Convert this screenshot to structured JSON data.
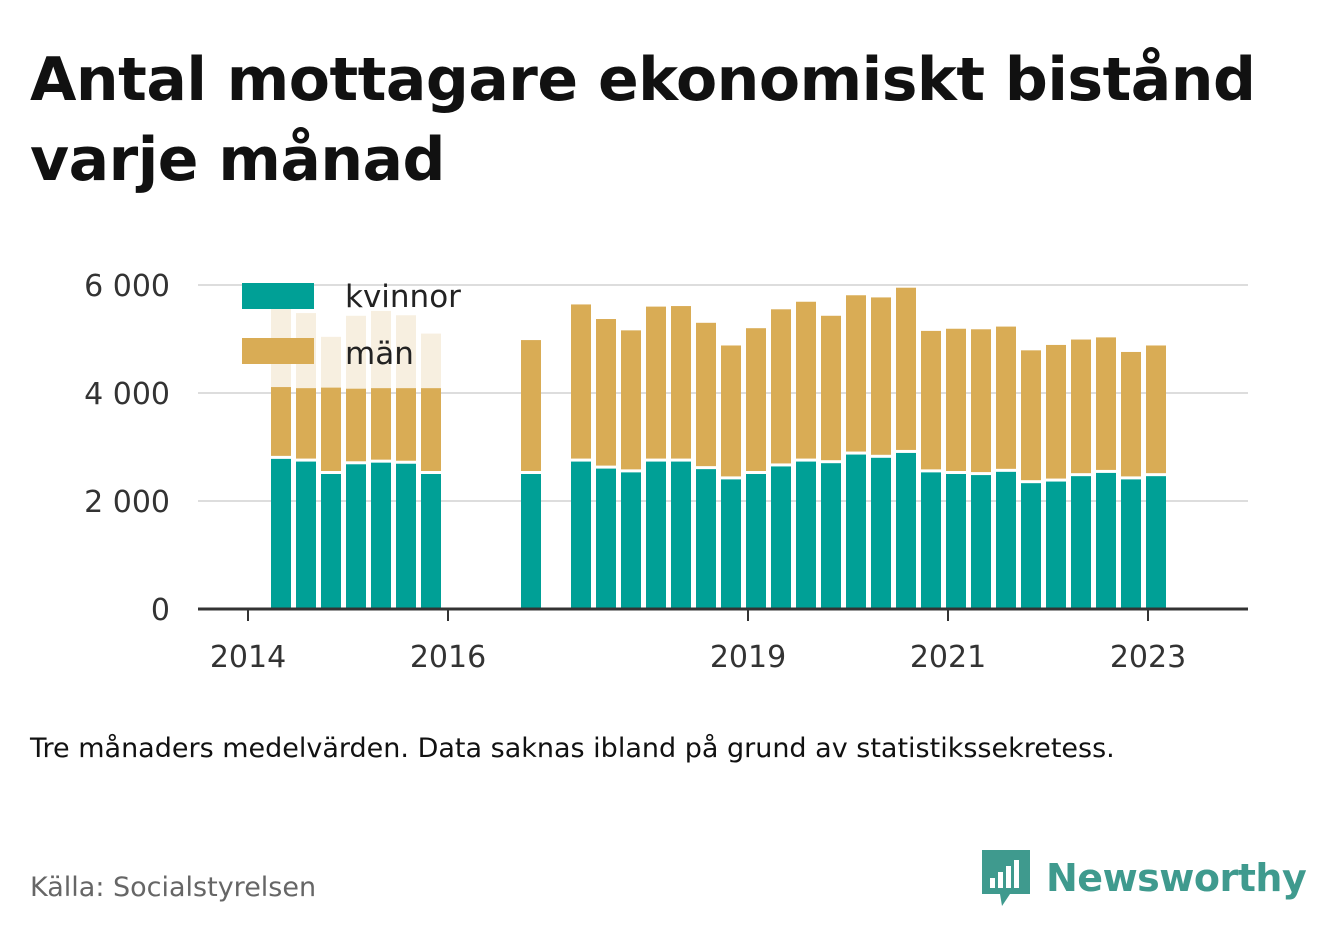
{
  "title": "Antal mottagare ekonomiskt bistånd varje månad",
  "footnote": "Tre månaders medelvärden. Data saknas ibland på grund av statistikssekretess.",
  "source": "Källa: Socialstyrelsen",
  "brand": {
    "name": "Newsworthy",
    "icon": "newsworthy-logo-icon",
    "color": "#3f9a8e"
  },
  "colors": {
    "kvinnor": "#00a096",
    "man": "#d9ac55",
    "man_faded": "#f7efe0",
    "grid": "#dddddd",
    "axis": "#333333"
  },
  "chart_data": {
    "type": "bar",
    "stacked": true,
    "legend": [
      "kvinnor",
      "män"
    ],
    "legend_position": "top-left",
    "grid": true,
    "ylim": [
      0,
      6000
    ],
    "yticks": [
      {
        "value": 0,
        "label": "0"
      },
      {
        "value": 2000,
        "label": "2 000"
      },
      {
        "value": 4000,
        "label": "4 000"
      },
      {
        "value": 6000,
        "label": "6 000"
      }
    ],
    "xticks": [
      {
        "value": 2014,
        "label": "2014"
      },
      {
        "value": 2016,
        "label": "2016"
      },
      {
        "value": 2019,
        "label": "2019"
      },
      {
        "value": 2021,
        "label": "2021"
      },
      {
        "value": 2023,
        "label": "2023"
      }
    ],
    "xlim": [
      2013.5,
      2024.0
    ],
    "x": [
      2014.33,
      2014.58,
      2014.83,
      2015.08,
      2015.33,
      2015.58,
      2015.83,
      2016.83,
      2017.33,
      2017.58,
      2017.83,
      2018.08,
      2018.33,
      2018.58,
      2018.83,
      2019.08,
      2019.33,
      2019.58,
      2019.83,
      2020.08,
      2020.33,
      2020.58,
      2020.83,
      2021.08,
      2021.33,
      2021.58,
      2021.83,
      2022.08,
      2022.33,
      2022.58,
      2022.83,
      2023.08
    ],
    "series": [
      {
        "name": "kvinnor",
        "values": [
          2780,
          2730,
          2500,
          2680,
          2710,
          2690,
          2500,
          2500,
          2730,
          2600,
          2530,
          2730,
          2730,
          2590,
          2400,
          2500,
          2640,
          2730,
          2700,
          2860,
          2800,
          2890,
          2530,
          2500,
          2480,
          2540,
          2330,
          2360,
          2460,
          2520,
          2400,
          2460
        ]
      },
      {
        "name": "män",
        "values": [
          1330,
          1360,
          1600,
          1400,
          1380,
          1400,
          1590,
          2480,
          2910,
          2770,
          2630,
          2870,
          2880,
          2710,
          2480,
          2700,
          2910,
          2960,
          2730,
          2950,
          2970,
          3060,
          2620,
          2690,
          2700,
          2690,
          2460,
          2530,
          2530,
          2510,
          2360,
          2420
        ]
      }
    ],
    "faded_totals": [
      5600,
      5480,
      5040,
      5430,
      5520,
      5440,
      5100
    ]
  }
}
